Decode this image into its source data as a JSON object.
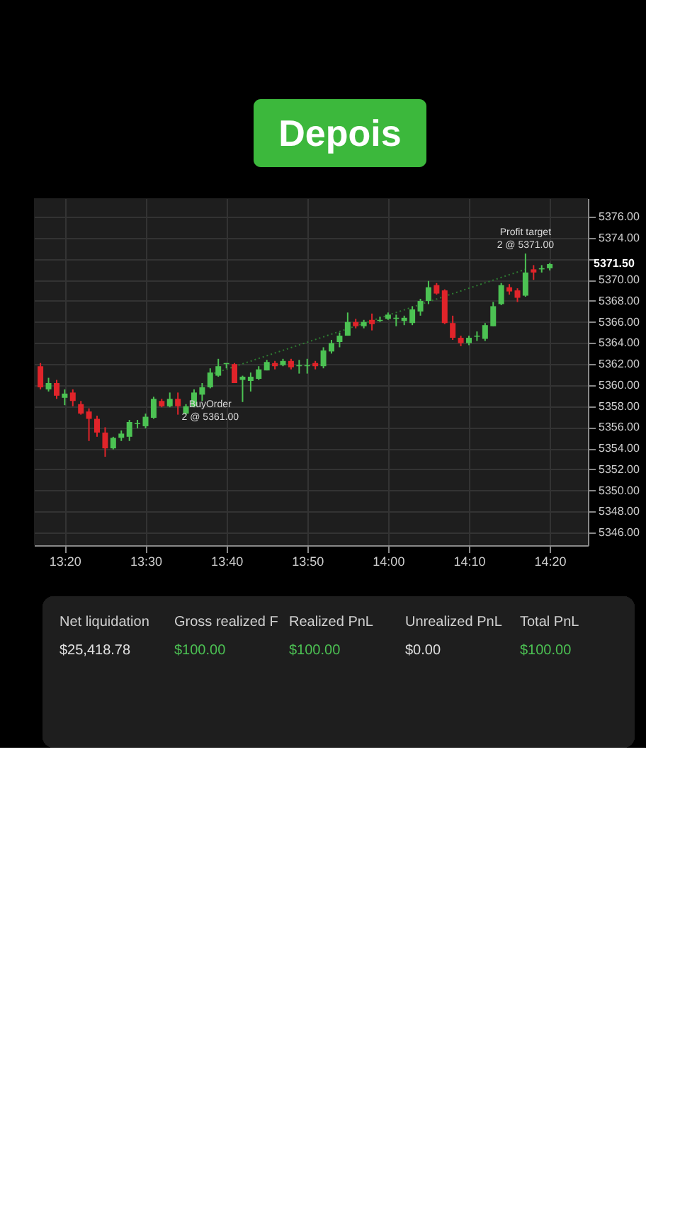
{
  "chart_data": {
    "type": "candlestick",
    "title": "Depois",
    "x": [
      13.2833,
      13.3,
      13.3167,
      13.3333,
      13.35,
      13.3667,
      13.3833,
      13.4,
      13.4167,
      13.4333,
      13.45,
      13.4667,
      13.4833,
      13.5,
      13.5167,
      13.5333,
      13.55,
      13.5667,
      13.5833,
      13.6,
      13.6167,
      13.6333,
      13.65,
      13.6667,
      13.6833,
      13.7,
      13.7167,
      13.7333,
      13.75,
      13.7667,
      13.7833,
      13.8,
      13.8167,
      13.8333,
      13.85,
      13.8667,
      13.8833,
      13.9,
      13.9167,
      13.9333,
      13.95,
      13.9667,
      13.9833,
      14.0,
      14.0167,
      14.0333,
      14.05,
      14.0667,
      14.0833,
      14.1,
      14.1167,
      14.1333,
      14.15,
      14.1667,
      14.1833,
      14.2,
      14.2167,
      14.2333,
      14.25,
      14.2667,
      14.2833,
      14.3,
      14.3167,
      14.3333
    ],
    "ohlc": [
      [
        5361.8,
        5362.1,
        5359.6,
        5359.8
      ],
      [
        5359.6,
        5360.7,
        5359.4,
        5360.2
      ],
      [
        5360.2,
        5360.5,
        5358.7,
        5359.0
      ],
      [
        5358.8,
        5359.6,
        5358.1,
        5359.2
      ],
      [
        5359.3,
        5359.6,
        5358.0,
        5358.5
      ],
      [
        5358.2,
        5358.5,
        5357.2,
        5357.3
      ],
      [
        5357.5,
        5357.8,
        5354.7,
        5356.8
      ],
      [
        5356.8,
        5357.1,
        5355.1,
        5355.5
      ],
      [
        5355.5,
        5356.0,
        5353.2,
        5354.0
      ],
      [
        5354.0,
        5355.1,
        5353.9,
        5355.0
      ],
      [
        5355.0,
        5355.7,
        5354.7,
        5355.4
      ],
      [
        5355.1,
        5356.7,
        5354.7,
        5356.5
      ],
      [
        5356.3,
        5356.7,
        5355.9,
        5356.4
      ],
      [
        5356.1,
        5357.3,
        5355.9,
        5357.0
      ],
      [
        5356.9,
        5358.9,
        5356.8,
        5358.7
      ],
      [
        5358.5,
        5358.7,
        5357.9,
        5358.0
      ],
      [
        5358.0,
        5359.3,
        5357.9,
        5358.7
      ],
      [
        5358.7,
        5359.3,
        5357.2,
        5358.0
      ],
      [
        5357.3,
        5358.2,
        5357.2,
        5358.0
      ],
      [
        5358.0,
        5359.6,
        5357.9,
        5359.3
      ],
      [
        5359.1,
        5360.2,
        5358.5,
        5359.8
      ],
      [
        5359.8,
        5361.6,
        5359.7,
        5361.2
      ],
      [
        5360.9,
        5362.5,
        5360.8,
        5361.8
      ],
      [
        5362.0,
        5362.1,
        5361.6,
        5362.1
      ],
      [
        5362.0,
        5362.1,
        5360.2,
        5360.2
      ],
      [
        5360.5,
        5360.9,
        5358.4,
        5360.8
      ],
      [
        5360.4,
        5361.2,
        5359.4,
        5360.8
      ],
      [
        5360.6,
        5361.8,
        5360.5,
        5361.5
      ],
      [
        5361.4,
        5362.4,
        5361.4,
        5362.2
      ],
      [
        5362.1,
        5362.3,
        5361.5,
        5361.8
      ],
      [
        5361.9,
        5362.5,
        5361.8,
        5362.3
      ],
      [
        5362.3,
        5362.5,
        5361.5,
        5361.7
      ],
      [
        5361.8,
        5362.4,
        5361.1,
        5361.9
      ],
      [
        5361.8,
        5362.5,
        5361.1,
        5361.9
      ],
      [
        5362.1,
        5362.3,
        5361.5,
        5361.8
      ],
      [
        5361.8,
        5363.6,
        5361.6,
        5363.3
      ],
      [
        5363.2,
        5364.3,
        5363.0,
        5364.0
      ],
      [
        5364.1,
        5365.0,
        5363.6,
        5364.7
      ],
      [
        5364.7,
        5366.9,
        5364.7,
        5366.0
      ],
      [
        5366.0,
        5366.3,
        5365.4,
        5365.6
      ],
      [
        5365.6,
        5366.2,
        5365.4,
        5366.0
      ],
      [
        5366.2,
        5366.8,
        5365.2,
        5365.8
      ],
      [
        5366.1,
        5366.5,
        5366.0,
        5366.2
      ],
      [
        5366.3,
        5366.9,
        5366.2,
        5366.7
      ],
      [
        5366.3,
        5366.7,
        5365.6,
        5366.4
      ],
      [
        5366.1,
        5366.6,
        5365.7,
        5366.4
      ],
      [
        5365.9,
        5367.5,
        5365.7,
        5367.2
      ],
      [
        5367.0,
        5368.2,
        5366.6,
        5368.0
      ],
      [
        5368.0,
        5369.9,
        5367.7,
        5369.3
      ],
      [
        5369.5,
        5369.7,
        5368.6,
        5368.7
      ],
      [
        5369.0,
        5369.1,
        5365.8,
        5365.9
      ],
      [
        5365.9,
        5366.6,
        5364.3,
        5364.5
      ],
      [
        5364.5,
        5364.7,
        5363.7,
        5364.0
      ],
      [
        5364.0,
        5364.7,
        5363.8,
        5364.5
      ],
      [
        5364.6,
        5365.1,
        5364.2,
        5364.7
      ],
      [
        5364.4,
        5365.9,
        5364.2,
        5365.7
      ],
      [
        5365.6,
        5367.9,
        5365.6,
        5367.5
      ],
      [
        5367.7,
        5369.7,
        5367.6,
        5369.5
      ],
      [
        5369.3,
        5369.6,
        5368.6,
        5368.9
      ],
      [
        5369.0,
        5369.2,
        5367.9,
        5368.3
      ],
      [
        5368.5,
        5372.5,
        5368.4,
        5370.7
      ],
      [
        5371.0,
        5371.4,
        5370.0,
        5370.7
      ],
      [
        5371.0,
        5371.4,
        5370.7,
        5371.1
      ],
      [
        5371.1,
        5371.6,
        5370.9,
        5371.5
      ]
    ],
    "colors": [
      "#e0242a",
      "#4cc253",
      "#e0242a",
      "#4cc253",
      "#e0242a",
      "#e0242a",
      "#e0242a",
      "#e0242a",
      "#e0242a",
      "#4cc253",
      "#4cc253",
      "#4cc253",
      "#4cc253",
      "#4cc253",
      "#4cc253",
      "#e0242a",
      "#4cc253",
      "#e0242a",
      "#4cc253",
      "#4cc253",
      "#4cc253",
      "#4cc253",
      "#4cc253",
      "#4cc253",
      "#e0242a",
      "#4cc253",
      "#4cc253",
      "#4cc253",
      "#4cc253",
      "#e0242a",
      "#4cc253",
      "#e0242a",
      "#4cc253",
      "#4cc253",
      "#e0242a",
      "#4cc253",
      "#4cc253",
      "#4cc253",
      "#4cc253",
      "#e0242a",
      "#4cc253",
      "#e0242a",
      "#4cc253",
      "#4cc253",
      "#4cc253",
      "#4cc253",
      "#4cc253",
      "#4cc253",
      "#4cc253",
      "#e0242a",
      "#e0242a",
      "#e0242a",
      "#e0242a",
      "#4cc253",
      "#4cc253",
      "#4cc253",
      "#4cc253",
      "#4cc253",
      "#e0242a",
      "#e0242a",
      "#4cc253",
      "#e0242a",
      "#4cc253",
      "#4cc253"
    ],
    "series": [
      {
        "type": "line",
        "color": "#2e7d32",
        "line_style": "dotted",
        "x": [
          13.6333,
          14.2833
        ],
        "values": [
          5361.0,
          5371.0
        ]
      }
    ],
    "xlim": [
      13.27,
      14.412
    ],
    "ylim": [
      5344.8,
      5377.75
    ],
    "xticks": [
      {
        "value": 13.3333,
        "label": "13:20"
      },
      {
        "value": 13.5,
        "label": "13:30"
      },
      {
        "value": 13.6667,
        "label": "13:40"
      },
      {
        "value": 13.8333,
        "label": "13:50"
      },
      {
        "value": 14.0,
        "label": "14:00"
      },
      {
        "value": 14.1667,
        "label": "14:10"
      },
      {
        "value": 14.3333,
        "label": "14:20"
      }
    ],
    "yticks": [
      {
        "value": 5346,
        "label": "5346.00"
      },
      {
        "value": 5348,
        "label": "5348.00"
      },
      {
        "value": 5350,
        "label": "5350.00"
      },
      {
        "value": 5352,
        "label": "5352.00"
      },
      {
        "value": 5354,
        "label": "5354.00"
      },
      {
        "value": 5356,
        "label": "5356.00"
      },
      {
        "value": 5358,
        "label": "5358.00"
      },
      {
        "value": 5360,
        "label": "5360.00"
      },
      {
        "value": 5362,
        "label": "5362.00"
      },
      {
        "value": 5364,
        "label": "5364.00"
      },
      {
        "value": 5366,
        "label": "5366.00"
      },
      {
        "value": 5368,
        "label": "5368.00"
      },
      {
        "value": 5370,
        "label": "5370.00"
      },
      {
        "value": 5372,
        "label": null
      },
      {
        "value": 5374,
        "label": "5374.00"
      },
      {
        "value": 5376,
        "label": "5376.00"
      }
    ],
    "grid": true,
    "annotations": [
      {
        "text": "BuyOrder\n2 @ 5361.00",
        "x": 13.6333,
        "y": 5361.0
      },
      {
        "text": "Profit target\n2 @ 5371.00",
        "x": 14.2833,
        "y": 5371.0
      },
      "5371.50",
      "Net liquidation",
      "Gross realized F",
      "Realized PnL",
      "Unrealized PnL",
      "Total PnL",
      "$25,418.78",
      "$100.00",
      "$100.00",
      "$0.00",
      "$100.00"
    ]
  }
}
